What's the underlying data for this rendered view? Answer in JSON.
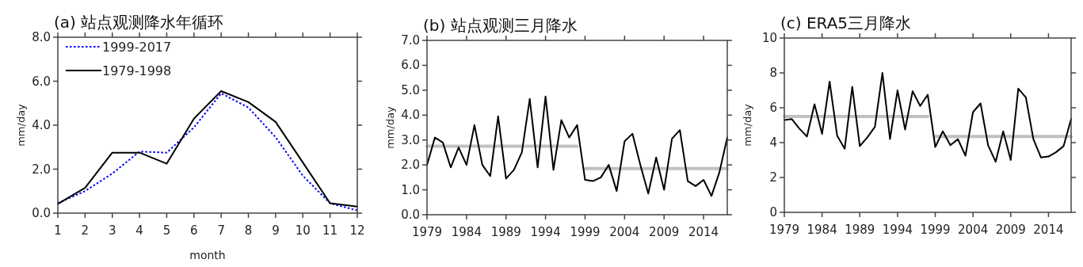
{
  "chart_data": [
    {
      "type": "line",
      "title": "(a) 站点观测降水年循环",
      "xlabel": "month",
      "ylabel": "mm/day",
      "xlim": [
        1,
        12
      ],
      "xticks": [
        1,
        2,
        3,
        4,
        5,
        6,
        7,
        8,
        9,
        10,
        11,
        12
      ],
      "ylim": [
        0,
        8
      ],
      "yticks": [
        {
          "value": 0,
          "label": "0.0"
        },
        {
          "value": 2,
          "label": "2.0"
        },
        {
          "value": 4,
          "label": "4.0"
        },
        {
          "value": 6,
          "label": "6.0"
        },
        {
          "value": 8,
          "label": "8.0"
        }
      ],
      "legend": "top left",
      "grid": false,
      "x": [
        1,
        2,
        3,
        4,
        5,
        6,
        7,
        8,
        9,
        10,
        11,
        12
      ],
      "series": [
        {
          "name": "1999-2017",
          "color": "#0000ff",
          "line_style": "dotted",
          "values": [
            0.45,
            1.0,
            1.8,
            2.8,
            2.75,
            3.9,
            5.45,
            4.8,
            3.45,
            1.7,
            0.45,
            0.12
          ]
        },
        {
          "name": "1979-1998",
          "color": "#000000",
          "line_style": "solid",
          "values": [
            0.42,
            1.15,
            2.75,
            2.75,
            2.25,
            4.3,
            5.55,
            5.05,
            4.15,
            2.3,
            0.45,
            0.3
          ]
        }
      ]
    },
    {
      "type": "line",
      "title": "(b) 站点观测三月降水",
      "ylabel": "mm/day",
      "xlim": [
        1979,
        2017
      ],
      "xticks": [
        1979,
        1984,
        1989,
        1994,
        1999,
        2004,
        2009,
        2014
      ],
      "ylim": [
        0,
        7
      ],
      "yticks": [
        {
          "value": 0,
          "label": "0.0"
        },
        {
          "value": 1,
          "label": "1.0"
        },
        {
          "value": 2,
          "label": "2.0"
        },
        {
          "value": 3,
          "label": "3.0"
        },
        {
          "value": 4,
          "label": "4.0"
        },
        {
          "value": 5,
          "label": "5.0"
        },
        {
          "value": 6,
          "label": "6.0"
        },
        {
          "value": 7,
          "label": "7.0"
        }
      ],
      "grid": false,
      "x": [
        1979,
        1980,
        1981,
        1982,
        1983,
        1984,
        1985,
        1986,
        1987,
        1988,
        1989,
        1990,
        1991,
        1992,
        1993,
        1994,
        1995,
        1996,
        1997,
        1998,
        1999,
        2000,
        2001,
        2002,
        2003,
        2004,
        2005,
        2006,
        2007,
        2008,
        2009,
        2010,
        2011,
        2012,
        2013,
        2014,
        2015,
        2016,
        2017
      ],
      "series": [
        {
          "color": "#c0c0c0",
          "x": [
            1979,
            1998
          ],
          "values": [
            2.75,
            2.75
          ]
        },
        {
          "color": "#c0c0c0",
          "x": [
            1999,
            2017
          ],
          "values": [
            1.85,
            1.85
          ]
        },
        {
          "color": "#000000",
          "values": [
            2.0,
            3.1,
            2.9,
            1.9,
            2.7,
            2.0,
            3.6,
            2.0,
            1.55,
            3.95,
            1.45,
            1.8,
            2.5,
            4.65,
            1.9,
            4.75,
            1.8,
            3.8,
            3.1,
            3.6,
            1.4,
            1.35,
            1.5,
            2.0,
            0.95,
            2.95,
            3.25,
            2.0,
            0.85,
            2.3,
            1.0,
            3.05,
            3.4,
            1.35,
            1.15,
            1.4,
            0.75,
            1.7,
            3.1
          ]
        }
      ]
    },
    {
      "type": "line",
      "title": "(c) ERA5三月降水",
      "ylabel": "mm/day",
      "xlim": [
        1979,
        2017
      ],
      "xticks": [
        1979,
        1984,
        1989,
        1994,
        1999,
        2004,
        2009,
        2014
      ],
      "ylim": [
        0,
        10
      ],
      "yticks": [
        0,
        2,
        4,
        6,
        8,
        10
      ],
      "grid": false,
      "x": [
        1979,
        1980,
        1981,
        1982,
        1983,
        1984,
        1985,
        1986,
        1987,
        1988,
        1989,
        1990,
        1991,
        1992,
        1993,
        1994,
        1995,
        1996,
        1997,
        1998,
        1999,
        2000,
        2001,
        2002,
        2003,
        2004,
        2005,
        2006,
        2007,
        2008,
        2009,
        2010,
        2011,
        2012,
        2013,
        2014,
        2015,
        2016,
        2017
      ],
      "series": [
        {
          "color": "#c0c0c0",
          "x": [
            1979,
            1998
          ],
          "values": [
            5.5,
            5.5
          ]
        },
        {
          "color": "#c0c0c0",
          "x": [
            1999,
            2017
          ],
          "values": [
            4.35,
            4.35
          ]
        },
        {
          "color": "#000000",
          "values": [
            5.3,
            5.35,
            4.8,
            4.35,
            6.2,
            4.5,
            7.5,
            4.4,
            3.65,
            7.2,
            3.8,
            4.3,
            4.9,
            8.0,
            4.2,
            7.0,
            4.75,
            6.95,
            6.1,
            6.75,
            3.75,
            4.65,
            3.85,
            4.2,
            3.25,
            5.75,
            6.25,
            3.85,
            2.9,
            4.65,
            3.0,
            7.1,
            6.6,
            4.2,
            3.15,
            3.2,
            3.45,
            3.8,
            5.35
          ]
        }
      ]
    }
  ]
}
